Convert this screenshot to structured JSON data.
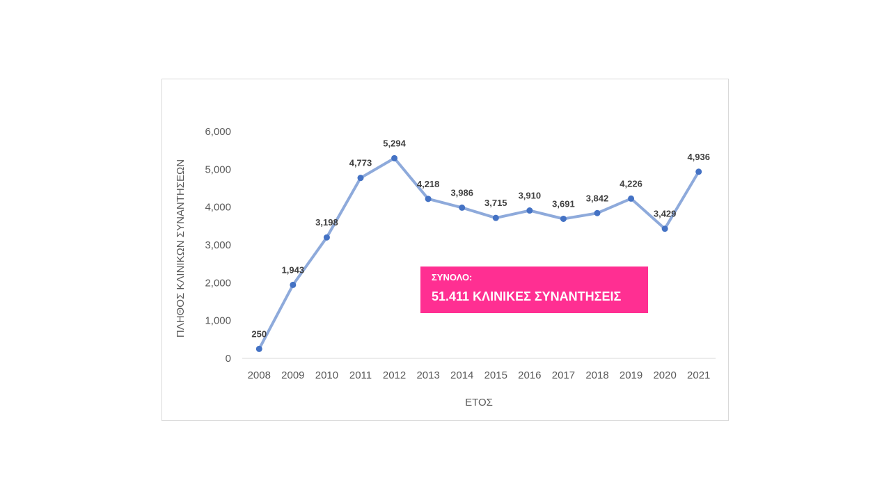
{
  "colors": {
    "line": "#8eaadb",
    "marker": "#4472c4",
    "total_box": "#ff2f92"
  },
  "total_box": {
    "label": "ΣΥΝΟΛΟ:",
    "value": "51.411 ΚΛΙΝΙΚΕΣ ΣΥΝΑΝΤΗΣΕΙΣ"
  },
  "chart_data": {
    "type": "line",
    "title": "",
    "xlabel": "ΕΤΟΣ",
    "ylabel": "ΠΛΗΘΟΣ ΚΛΙΝΙΚΩΝ ΣΥΝΑΝΤΗΣΕΩΝ",
    "ylim": [
      0,
      6000
    ],
    "yticks": [
      0,
      1000,
      2000,
      3000,
      4000,
      5000,
      6000
    ],
    "ytick_labels": [
      "0",
      "1,000",
      "2,000",
      "3,000",
      "4,000",
      "5,000",
      "6,000"
    ],
    "grid": false,
    "legend": "none",
    "categories": [
      "2008",
      "2009",
      "2010",
      "2011",
      "2012",
      "2013",
      "2014",
      "2015",
      "2016",
      "2017",
      "2018",
      "2019",
      "2020",
      "2021"
    ],
    "series": [
      {
        "values": [
          250,
          1943,
          3198,
          4773,
          5294,
          4218,
          3986,
          3715,
          3910,
          3691,
          3842,
          4226,
          3429,
          4936
        ],
        "labels": [
          "250",
          "1,943",
          "3,198",
          "4,773",
          "5,294",
          "4,218",
          "3,986",
          "3,715",
          "3,910",
          "3,691",
          "3,842",
          "4,226",
          "3,429",
          "4,936"
        ]
      }
    ]
  }
}
